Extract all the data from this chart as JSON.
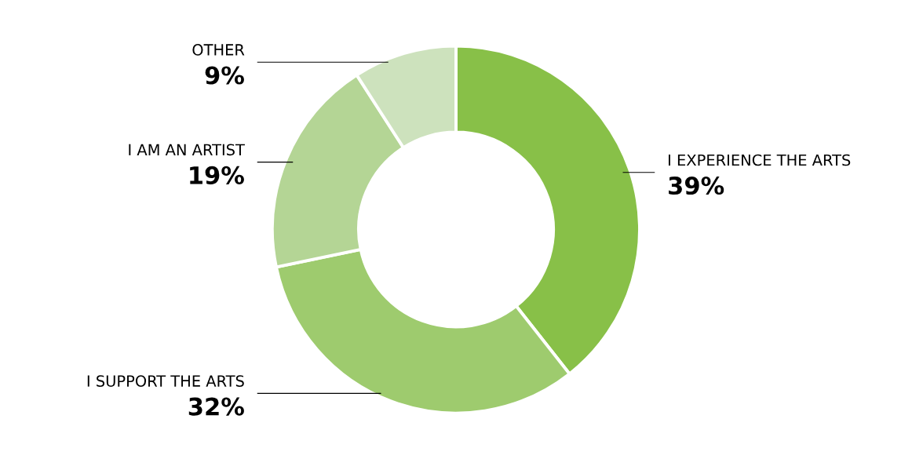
{
  "chart_data": {
    "type": "donut",
    "categories": [
      "I EXPERIENCE THE ARTS",
      "I SUPPORT THE ARTS",
      "I AM AN ARTIST",
      "OTHER"
    ],
    "values": [
      39,
      32,
      19,
      9
    ],
    "value_labels": [
      "39%",
      "32%",
      "19%",
      "9%"
    ],
    "colors": [
      "#88c048",
      "#9ecb6e",
      "#b4d595",
      "#cde2bd"
    ]
  }
}
